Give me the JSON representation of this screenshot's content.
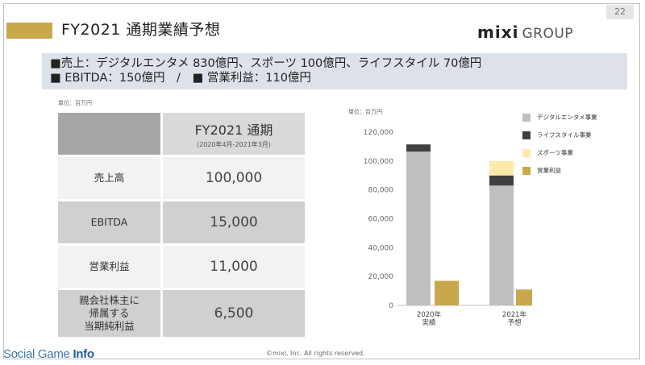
{
  "page_number": "22",
  "title": "FY2021 通期業績予想",
  "logo": {
    "mixi": "mixi",
    "group": "GROUP"
  },
  "summary": {
    "line1": "■売上：デジタルエンタメ 830億円、スポーツ 100億円、ライフスタイル 70億円",
    "line2": "■ EBITDA：150億円　/　■ 営業利益：110億円"
  },
  "table": {
    "unit": "単位：百万円",
    "header": {
      "period": "FY2021 通期",
      "range": "(2020年4月-2021年3月)"
    },
    "rows": [
      {
        "label": "売上高",
        "value": "100,000"
      },
      {
        "label": "EBITDA",
        "value": "15,000"
      },
      {
        "label": "営業利益",
        "value": "11,000"
      },
      {
        "label": "親会社株主に\n帰属する\n当期純利益",
        "value": "6,500"
      }
    ]
  },
  "chart_unit": "単位：百万円",
  "chart_data": {
    "type": "bar",
    "stacked": true,
    "categories": [
      "2020年\n実績",
      "2021年\n予想"
    ],
    "series": [
      {
        "name": "デジタルエンタメ事業",
        "values": [
          106500,
          83000
        ],
        "color": "#bfbfbf"
      },
      {
        "name": "ライフスタイル事業",
        "values": [
          5000,
          7000
        ],
        "color": "#404040"
      },
      {
        "name": "スポーツ事業",
        "values": [
          0,
          10000
        ],
        "color": "#fde9a9"
      }
    ],
    "operating_income": {
      "name": "営業利益",
      "values": [
        17000,
        11000
      ],
      "color": "#c9a84c"
    },
    "ylim": [
      0,
      120000
    ],
    "yticks": [
      "0",
      "20,000",
      "40,000",
      "60,000",
      "80,000",
      "100,000",
      "120,000"
    ],
    "grid": false,
    "legend": "right"
  },
  "footer": "©mixi, Inc. All rights reserved.",
  "watermark": {
    "prefix": "Social Game ",
    "bold": "Info"
  }
}
